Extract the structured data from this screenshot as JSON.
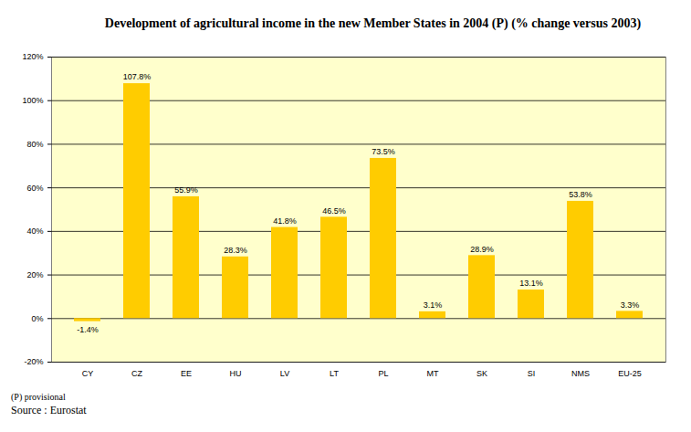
{
  "chart_data": {
    "type": "bar",
    "title": "Development of agricultural income in the new Member States in 2004 (P) (% change versus 2003)",
    "categories": [
      "CY",
      "CZ",
      "EE",
      "HU",
      "LV",
      "LT",
      "PL",
      "MT",
      "SK",
      "SI",
      "NMS",
      "EU-25"
    ],
    "values": [
      -1.4,
      107.8,
      55.9,
      28.3,
      41.8,
      46.5,
      73.5,
      3.1,
      28.9,
      13.1,
      53.8,
      3.3
    ],
    "value_labels": [
      "-1.4%",
      "107.8%",
      "55.9%",
      "28.3%",
      "41.8%",
      "46.5%",
      "73.5%",
      "3.1%",
      "28.9%",
      "13.1%",
      "53.8%",
      "3.3%"
    ],
    "data_labels": true,
    "color": "#ffcc00",
    "ylim": [
      -20,
      120
    ],
    "yticks": [
      {
        "value": -20,
        "label": "-20%"
      },
      {
        "value": 0,
        "label": "0%"
      },
      {
        "value": 20,
        "label": "20%"
      },
      {
        "value": 40,
        "label": "40%"
      },
      {
        "value": 60,
        "label": "60%"
      },
      {
        "value": 80,
        "label": "80%"
      },
      {
        "value": 100,
        "label": "100%"
      },
      {
        "value": 120,
        "label": "120%"
      }
    ],
    "grid": true,
    "annotations": [
      "(P) provisional",
      "Source : Eurostat"
    ]
  }
}
